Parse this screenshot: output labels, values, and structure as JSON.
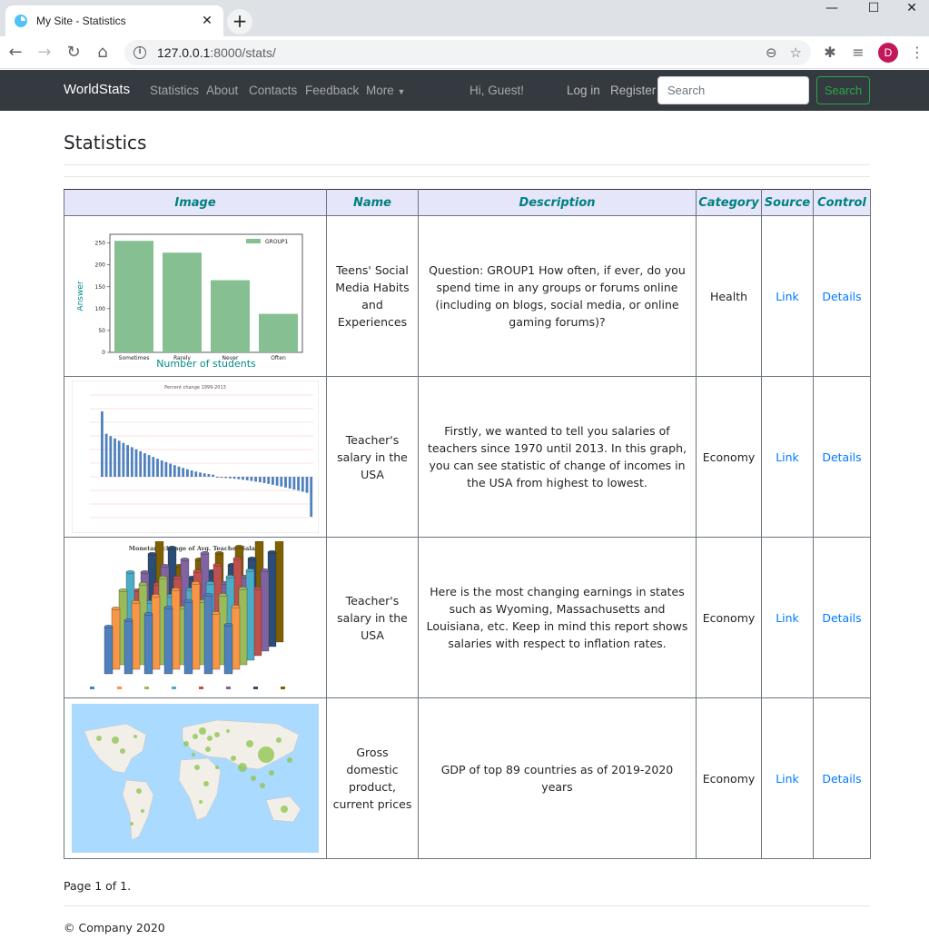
{
  "browser": {
    "tab_title": "My Site - Statistics",
    "url_host": "127.0.0.1",
    "url_path": ":8000/stats/",
    "profile_initial": "D"
  },
  "navbar": {
    "brand": "WorldStats",
    "links": [
      "Statistics",
      "About",
      "Contacts",
      "Feedback",
      "More"
    ],
    "greeting": "Hi, Guest!",
    "login": "Log in",
    "register": "Register",
    "search_placeholder": "Search",
    "search_button": "Search"
  },
  "page": {
    "title": "Statistics",
    "pager": "Page 1 of 1.",
    "footer": "© Company 2020"
  },
  "table": {
    "headers": [
      "Image",
      "Name",
      "Description",
      "Category",
      "Source",
      "Control"
    ],
    "rows": [
      {
        "name": "Teens' Social Media Habits and Experiences",
        "description": "Question: GROUP1 How often, if ever, do you spend time in any groups or forums online (including on blogs, social media, or online gaming forums)?",
        "category": "Health",
        "source": "Link",
        "control": "Details",
        "thumb": {
          "legend": "GROUP1",
          "ylabel": "Answer",
          "xlabel": "Number of students",
          "categories": [
            "Sometimes",
            "Rarely",
            "Never",
            "Often"
          ],
          "values": [
            255,
            228,
            165,
            88
          ],
          "yticks": [
            "250",
            "200",
            "150",
            "100",
            "50",
            "0"
          ]
        }
      },
      {
        "name": "Teacher's salary in the USA",
        "description": "Firstly, we wanted to tell you salaries of teachers since 1970 until 2013. In this graph, you can see statistic of change of incomes in the USA from highest to lowest.",
        "category": "Economy",
        "source": "Link",
        "control": "Details",
        "thumb": {
          "title": "Percent change 1999-2013"
        }
      },
      {
        "name": "Teacher's salary in the USA",
        "description": "Here is the most changing earnings in states such as Wyoming, Massachusetts and Louisiana, etc. Keep in mind this report shows salaries with respect to inflation rates.",
        "category": "Economy",
        "source": "Link",
        "control": "Details",
        "thumb": {
          "title": "Monetary change of Avg. Teacher Salary"
        }
      },
      {
        "name": "Gross domestic product, current prices",
        "description": "GDP of top 89 countries as of 2019-2020 years",
        "category": "Economy",
        "source": "Link",
        "control": "Details",
        "thumb": {}
      }
    ]
  },
  "colors": {
    "navbar_bg": "#343a40",
    "header_bg": "#e6e6fa",
    "header_text": "#008080",
    "link": "#007bff",
    "search_btn": "#28a745",
    "bar_green": "#86bf91",
    "bar_blue": "#4f81bd"
  }
}
